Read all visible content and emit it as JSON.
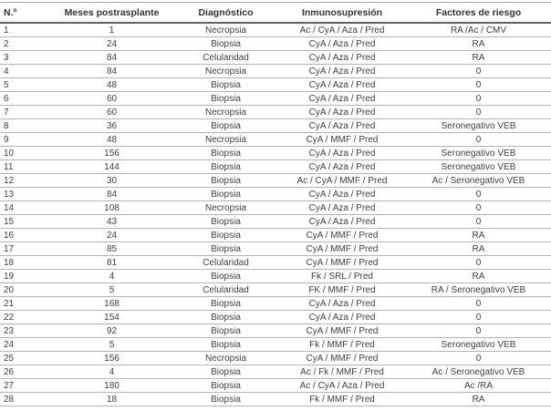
{
  "colors": {
    "background": "#ffffff",
    "text_body": "#404040",
    "text_header": "#333333",
    "row_separator": "#b5b5b5",
    "header_rule": "#606060",
    "top_rule": "#a8a8a8"
  },
  "table": {
    "columns": [
      "N.º",
      "Meses postrasplante",
      "Diagnóstico",
      "Inmunosupresión",
      "Factores de riesgo"
    ],
    "rows": [
      [
        "1",
        "1",
        "Necropsia",
        "Ac / CyA / Aza / Pred",
        "RA /Ac / CMV"
      ],
      [
        "2",
        "24",
        "Biopsia",
        "CyA / Aza / Pred",
        "RA"
      ],
      [
        "3",
        "84",
        "Celularidad",
        "CyA / Aza / Pred",
        "RA"
      ],
      [
        "4",
        "84",
        "Necropsia",
        "CyA / Aza / Pred",
        "0"
      ],
      [
        "5",
        "48",
        "Biopsia",
        "CyA / Aza / Pred",
        "0"
      ],
      [
        "6",
        "60",
        "Biopsia",
        "CyA / Aza / Pred",
        "0"
      ],
      [
        "7",
        "60",
        "Necropsia",
        "CyA / Aza / Pred",
        "0"
      ],
      [
        "8",
        "36",
        "Biopsia",
        "CyA / Aza / Pred",
        "Seronegativo VEB"
      ],
      [
        "9",
        "48",
        "Necropsia",
        "CyA / MMF / Pred",
        "0"
      ],
      [
        "10",
        "156",
        "Biopsia",
        "CyA / Aza / Pred",
        "Seronegativo VEB"
      ],
      [
        "11",
        "144",
        "Biopsia",
        "CyA / Aza / Pred",
        "Seronegativo VEB"
      ],
      [
        "12",
        "30",
        "Biopsia",
        "Ac / CyA / MMF / Pred",
        "Ac / Seronegativo VEB"
      ],
      [
        "13",
        "84",
        "Biopsia",
        "CyA / Aza / Pred",
        "0"
      ],
      [
        "14",
        "108",
        "Necropsia",
        "CyA / Aza / Pred",
        "0"
      ],
      [
        "15",
        "43",
        "Biopsia",
        "CyA / Aza / Pred",
        "0"
      ],
      [
        "16",
        "24",
        "Biopsia",
        "CyA / MMF / Pred",
        "RA"
      ],
      [
        "17",
        "85",
        "Biopsia",
        "CyA / MMF / Pred",
        "RA"
      ],
      [
        "18",
        "81",
        "Celularidad",
        "CyA / MMF / Pred",
        "0"
      ],
      [
        "19",
        "4",
        "Biopsia",
        "Fk / SRL / Pred",
        "RA"
      ],
      [
        "20",
        "5",
        "Celularidad",
        "FK / MMF / Pred",
        "RA / Seronegativo VEB"
      ],
      [
        "21",
        "168",
        "Biopsia",
        "CyA / Aza / Pred",
        "0"
      ],
      [
        "22",
        "154",
        "Biopsia",
        "CyA / Aza / Pred",
        "0"
      ],
      [
        "23",
        "92",
        "Biopsia",
        "CyA / MMF / Pred",
        "0"
      ],
      [
        "24",
        "5",
        "Biopsia",
        "Fk / MMF / Pred",
        "Seronegativo VEB"
      ],
      [
        "25",
        "156",
        "Necropsia",
        "CyA / MMF / Pred",
        "0"
      ],
      [
        "26",
        "4",
        "Biopsia",
        "Ac / Fk / MMF / Pred",
        "Ac / Seronegativo VEB"
      ],
      [
        "27",
        "180",
        "Biopsia",
        "Ac / CyA / Aza / Pred",
        "Ac /RA"
      ],
      [
        "28",
        "18",
        "Biopsia",
        "Fk / MMF / Pred",
        "RA"
      ]
    ]
  }
}
